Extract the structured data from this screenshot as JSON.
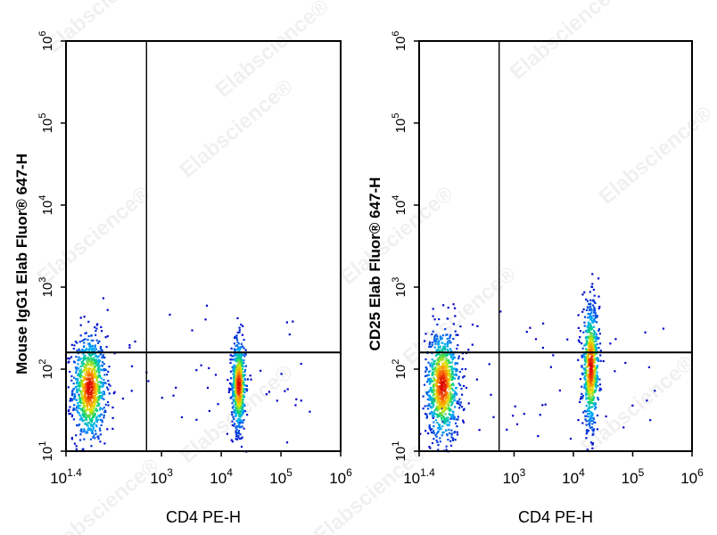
{
  "watermark": "Elabscience®",
  "chart_data": [
    {
      "type": "scatter",
      "panel": "left",
      "xlabel": "CD4 PE-H",
      "ylabel": "Mouse IgG1 Elab Fluor® 647-H",
      "xscale": "log",
      "yscale": "log",
      "xlim": [
        25.1,
        1000000
      ],
      "ylim": [
        10,
        1000000
      ],
      "x_ticks": [
        {
          "value": 25.1,
          "base": "10",
          "exp": "1.4"
        },
        {
          "value": 1000,
          "base": "10",
          "exp": "3"
        },
        {
          "value": 10000,
          "base": "10",
          "exp": "4"
        },
        {
          "value": 100000,
          "base": "10",
          "exp": "5"
        },
        {
          "value": 1000000,
          "base": "10",
          "exp": "6"
        }
      ],
      "y_ticks": [
        {
          "value": 10,
          "base": "10",
          "exp": "1"
        },
        {
          "value": 100,
          "base": "10",
          "exp": "2"
        },
        {
          "value": 1000,
          "base": "10",
          "exp": "3"
        },
        {
          "value": 10000,
          "base": "10",
          "exp": "4"
        },
        {
          "value": 100000,
          "base": "10",
          "exp": "5"
        },
        {
          "value": 1000000,
          "base": "10",
          "exp": "6"
        }
      ],
      "quadrant_gate": {
        "x": 560,
        "y": 160
      },
      "populations": [
        {
          "center_x": 60,
          "center_y": 60,
          "spread_x": 0.14,
          "spread_y": 0.32,
          "count": 900
        },
        {
          "center_x": 19000,
          "center_y": 65,
          "spread_x": 0.06,
          "spread_y": 0.28,
          "count": 600
        }
      ],
      "grid": false,
      "legend": "none"
    },
    {
      "type": "scatter",
      "panel": "right",
      "xlabel": "CD4 PE-H",
      "ylabel": "CD25 Elab Fluor® 647-H",
      "xscale": "log",
      "yscale": "log",
      "xlim": [
        25.1,
        1000000
      ],
      "ylim": [
        10,
        1000000
      ],
      "x_ticks": [
        {
          "value": 25.1,
          "base": "10",
          "exp": "1.4"
        },
        {
          "value": 1000,
          "base": "10",
          "exp": "3"
        },
        {
          "value": 10000,
          "base": "10",
          "exp": "4"
        },
        {
          "value": 100000,
          "base": "10",
          "exp": "5"
        },
        {
          "value": 1000000,
          "base": "10",
          "exp": "6"
        }
      ],
      "y_ticks": [
        {
          "value": 10,
          "base": "10",
          "exp": "1"
        },
        {
          "value": 100,
          "base": "10",
          "exp": "2"
        },
        {
          "value": 1000,
          "base": "10",
          "exp": "3"
        },
        {
          "value": 10000,
          "base": "10",
          "exp": "4"
        },
        {
          "value": 100000,
          "base": "10",
          "exp": "5"
        },
        {
          "value": 1000000,
          "base": "10",
          "exp": "6"
        }
      ],
      "quadrant_gate": {
        "x": 560,
        "y": 160
      },
      "populations": [
        {
          "center_x": 60,
          "center_y": 65,
          "spread_x": 0.14,
          "spread_y": 0.34,
          "count": 900
        },
        {
          "center_x": 19000,
          "center_y": 110,
          "spread_x": 0.07,
          "spread_y": 0.38,
          "count": 700
        }
      ],
      "grid": false,
      "legend": "none"
    }
  ]
}
